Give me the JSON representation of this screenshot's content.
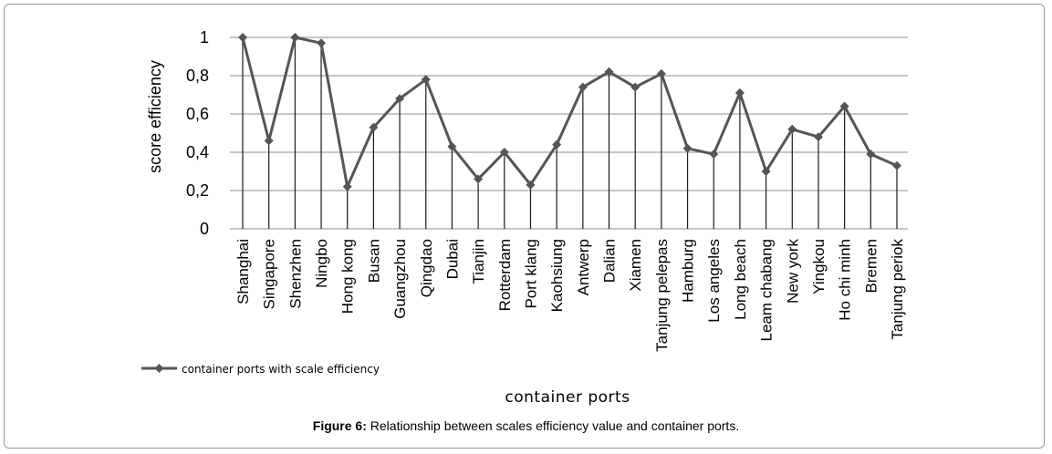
{
  "chart_data": {
    "type": "line",
    "ylabel": "score efficiency",
    "xlabel": "container ports",
    "ylim": [
      0,
      1
    ],
    "yticks": [
      0,
      0.2,
      0.4,
      0.6,
      0.8,
      1
    ],
    "ytick_labels": [
      "0",
      "0,2",
      "0,4",
      "0,6",
      "0,8",
      "1"
    ],
    "grid": "horizontal",
    "legend_position": "bottom-left",
    "categories": [
      "Shanghai",
      "Singapore",
      "Shenzhen",
      "Ningbo",
      "Hong kong",
      "Busan",
      "Guangzhou",
      "Qingdao",
      "Dubai",
      "Tianjin",
      "Rotterdam",
      "Port klang",
      "Kaohsiung",
      "Antwerp",
      "Dalian",
      "Xiamen",
      "Tanjung pelepas",
      "Hamburg",
      "Los angeles",
      "Long beach",
      "Leam chabang",
      "New york",
      "Yingkou",
      "Ho chi minh",
      "Bremen",
      "Tanjung periok"
    ],
    "series": [
      {
        "name": "container ports with scale efficiency",
        "color": "#555555",
        "marker": "diamond",
        "values": [
          1.0,
          0.46,
          1.0,
          0.97,
          0.22,
          0.53,
          0.68,
          0.78,
          0.43,
          0.26,
          0.4,
          0.23,
          0.44,
          0.74,
          0.82,
          0.74,
          0.81,
          0.42,
          0.39,
          0.71,
          0.3,
          0.52,
          0.48,
          0.64,
          0.39,
          0.33
        ]
      }
    ]
  },
  "caption": {
    "label": "Figure 6:",
    "text": " Relationship between scales efficiency value and container ports."
  }
}
